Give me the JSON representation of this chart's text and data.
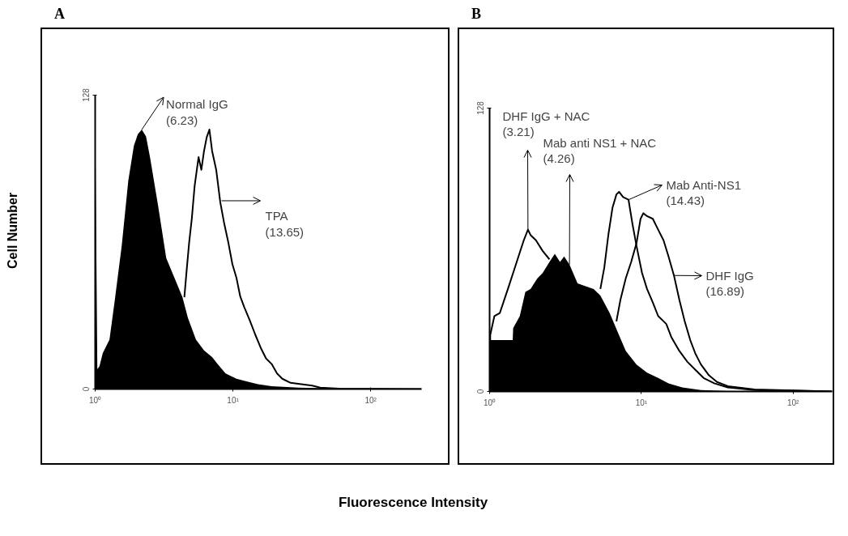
{
  "chart_data": [
    {
      "type": "line",
      "title": "A",
      "ylabel": "Cell Number",
      "xlabel": "Fluorescence Intensity",
      "log": "x",
      "xlim": [
        1,
        234
      ],
      "xticks": [
        {
          "value": 1,
          "label": "10⁰"
        },
        {
          "value": 10,
          "label": "10¹"
        },
        {
          "value": 100,
          "label": "10²"
        }
      ],
      "ylim": [
        0,
        128
      ],
      "yticks": [
        0,
        128
      ],
      "series": [
        {
          "type": "area",
          "color": "#000000",
          "x": [
            1,
            1.037,
            1.075,
            1.135,
            1.27,
            1.39,
            1.56,
            1.74,
            1.91,
            2.04,
            2.18,
            2.34,
            2.5,
            2.86,
            3.28,
            3.76,
            4.3,
            4.71,
            5.39,
            6.17,
            7.06,
            7.73,
            8.85,
            10.6,
            12.7,
            15.2,
            19.1,
            29.9,
            59,
            234
          ],
          "values": [
            120,
            8.6,
            10,
            15.6,
            21.5,
            39,
            62.6,
            90.8,
            106,
            111,
            113,
            110,
            101,
            80,
            57,
            48.5,
            40,
            31,
            21.5,
            16.8,
            13.9,
            10.9,
            6.8,
            4.5,
            3.3,
            2.1,
            1.2,
            0.6,
            0.2,
            0
          ]
        },
        {
          "color": "#000000",
          "x": [
            4.44,
            4.6,
            4.81,
            5.03,
            5.27,
            5.63,
            5.9,
            6.17,
            6.45,
            6.75,
            7.06,
            7.56,
            8.09,
            8.65,
            9.26,
            9.91,
            10.6,
            11.3,
            12.1,
            13.3,
            14.5,
            15.9,
            17.4,
            19.1,
            20.9,
            22.8,
            26.2,
            31.3,
            37.6,
            43,
            59,
            234
          ],
          "values": [
            40,
            50.8,
            63.8,
            74.3,
            88.4,
            101,
            95.5,
            103.7,
            109.6,
            113,
            103.7,
            95.5,
            81.4,
            72,
            63.8,
            54.4,
            48.5,
            40.3,
            35.6,
            29.7,
            23.8,
            18,
            13.3,
            10.9,
            6.8,
            4.5,
            2.7,
            2.1,
            1.5,
            0.6,
            0.2,
            0
          ]
        }
      ],
      "annotations": [
        {
          "text": "Normal IgG\n(6.23)",
          "x": 2.18,
          "y": 113
        },
        {
          "text": "TPA\n(13.65)",
          "x": 8.27,
          "y": 82
        }
      ]
    },
    {
      "type": "line",
      "title": "B",
      "log": "x",
      "xlim": [
        1,
        181
      ],
      "xticks": [
        {
          "value": 1,
          "label": "10⁰"
        },
        {
          "value": 10,
          "label": "10¹"
        },
        {
          "value": 100,
          "label": "10²"
        }
      ],
      "ylim": [
        0,
        128
      ],
      "yticks": [
        0,
        128
      ],
      "series": [
        {
          "type": "area",
          "color": "#000000",
          "x": [
            1,
            1.42,
            1.43,
            1.58,
            1.72,
            1.86,
            2.06,
            2.24,
            2.48,
            2.69,
            2.91,
            3.1,
            3.36,
            3.8,
            4.29,
            4.85,
            5.37,
            6.19,
            6.99,
            7.9,
            9.29,
            10.9,
            12.9,
            15.1,
            18.6,
            24.7,
            37.1,
            181
          ],
          "values": [
            23.2,
            23.2,
            28.6,
            34,
            45,
            46.3,
            51,
            53.6,
            58.5,
            62.2,
            58.5,
            61,
            57.3,
            48.8,
            47.5,
            46.3,
            43.3,
            35.4,
            26.8,
            18.3,
            12.2,
            8.5,
            6.1,
            3.7,
            1.8,
            0.6,
            0.2,
            0
          ]
        },
        {
          "color": "#000000",
          "x": [
            1,
            1.01,
            1.076,
            1.167,
            1.32,
            1.43,
            1.55,
            1.68,
            1.79,
            1.86,
            2.02,
            2.24,
            2.48
          ],
          "values": [
            0,
            25.6,
            34.1,
            35.4,
            46.3,
            53.6,
            61,
            68.3,
            73.1,
            70.7,
            68.3,
            63.4,
            59.7
          ]
        },
        {
          "color": "#000000",
          "x": [
            5.37,
            5.7,
            6.06,
            6.45,
            6.85,
            7.13,
            7.58,
            8.23,
            8.74,
            9.29,
            10.1,
            10.9,
            11.9,
            12.9,
            14.6,
            15.8,
            17.8,
            20.1,
            22.7,
            25.7,
            30.2,
            37.1,
            55.7,
            181
          ],
          "values": [
            46.3,
            56,
            70.7,
            82.9,
            89,
            90.2,
            87.8,
            86.6,
            75.6,
            65.8,
            53.6,
            46.3,
            40.2,
            34.1,
            30.5,
            24.4,
            18.3,
            13.4,
            9.8,
            6.1,
            3.7,
            1.8,
            0.6,
            0
          ]
        },
        {
          "color": "#000000",
          "x": [
            6.85,
            7.28,
            7.9,
            8.57,
            9.29,
            9.88,
            10.3,
            10.9,
            11.9,
            12.9,
            14,
            15.1,
            16.4,
            17.8,
            19.3,
            21,
            22.7,
            24.7,
            27.9,
            31.5,
            37.1,
            55.7,
            181
          ],
          "values": [
            31.7,
            41.4,
            51.2,
            58.5,
            67,
            78,
            80.5,
            79.2,
            78,
            73.1,
            68.3,
            61,
            52.4,
            41.4,
            31.7,
            23.2,
            17.1,
            12.2,
            7.3,
            4.3,
            2.4,
            0.9,
            0
          ]
        }
      ],
      "annotations": [
        {
          "text": "DHF IgG + NAC\n(3.21)",
          "x": 1.79,
          "y": 73.1
        },
        {
          "text": "Mab anti NS1 + NAC\n(4.26)",
          "x": 3.36,
          "y": 57.3
        },
        {
          "text": "Mab Anti-NS1\n(14.43)",
          "x": 8.23,
          "y": 86.6
        },
        {
          "text": "DHF IgG\n(16.89)",
          "x": 16.4,
          "y": 52.4
        }
      ]
    }
  ]
}
